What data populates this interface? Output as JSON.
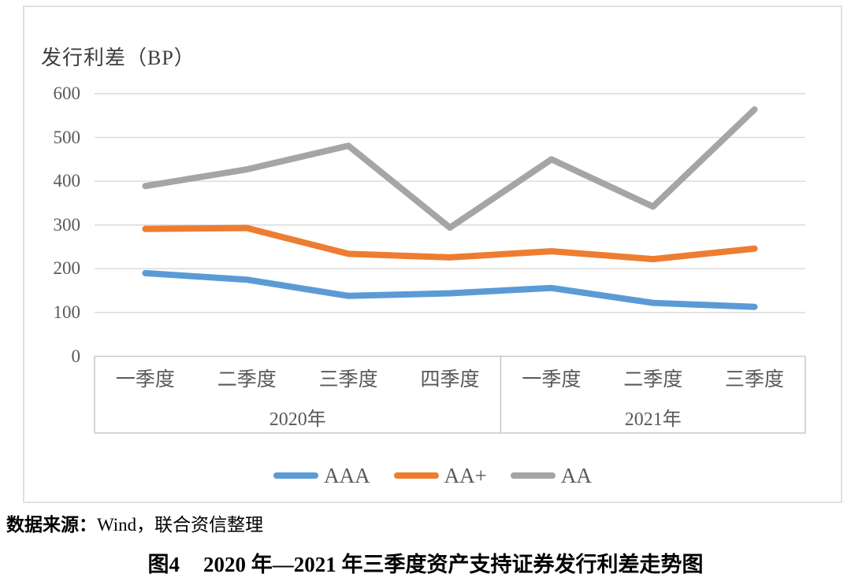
{
  "page": {
    "source_note": {
      "prefix": "数据来源：",
      "text": "Wind，联合资信整理"
    },
    "caption": {
      "label": "图4",
      "title": "2020 年—2021 年三季度资产支持证券发行利差走势图"
    }
  },
  "chart_data": {
    "type": "line",
    "title": "发行利差（BP）",
    "ylabel": "发行利差（BP）",
    "categories": [
      "一季度",
      "二季度",
      "三季度",
      "四季度",
      "一季度",
      "二季度",
      "三季度"
    ],
    "category_groups": [
      {
        "label": "2020年",
        "span": 4
      },
      {
        "label": "2021年",
        "span": 3
      }
    ],
    "series": [
      {
        "name": "AAA",
        "color": "#5B9BD5",
        "values": [
          190,
          175,
          138,
          144,
          156,
          122,
          113
        ]
      },
      {
        "name": "AA+",
        "color": "#ED7D31",
        "values": [
          291,
          293,
          234,
          226,
          240,
          222,
          246
        ]
      },
      {
        "name": "AA",
        "color": "#A5A5A5",
        "values": [
          389,
          427,
          481,
          294,
          450,
          342,
          564
        ]
      }
    ],
    "ylim": [
      0,
      600
    ],
    "yticks": [
      0,
      100,
      200,
      300,
      400,
      500,
      600
    ],
    "grid": true,
    "legend_position": "bottom",
    "axis_text_color": "#595959",
    "gridline_color": "#D9D9D9",
    "axis_line_color": "#C9C9C9"
  }
}
